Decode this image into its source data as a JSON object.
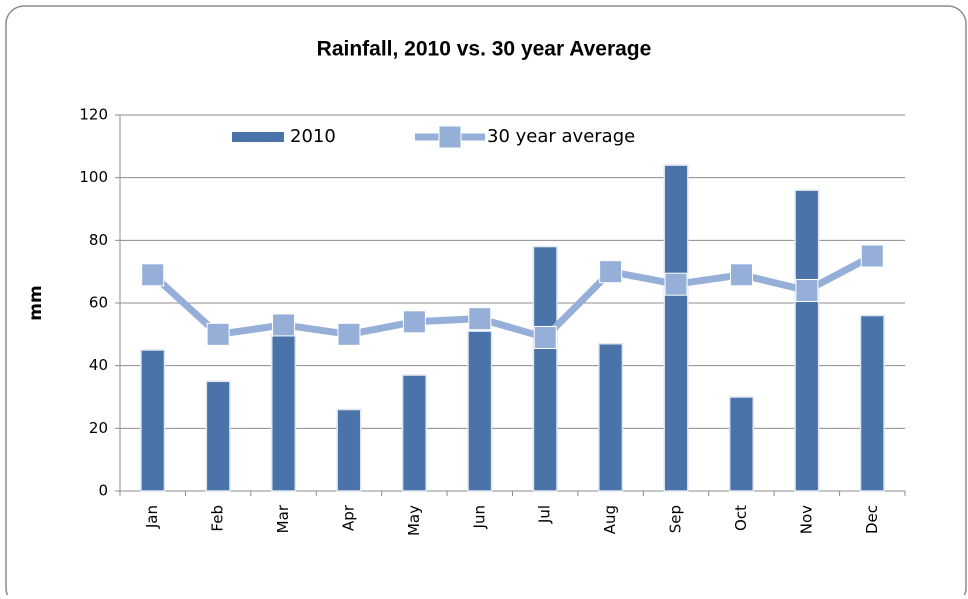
{
  "chart_data": {
    "type": "bar",
    "title": "Rainfall, 2010 vs. 30 year Average",
    "y_label": "mm",
    "categories": [
      "Jan",
      "Feb",
      "Mar",
      "Apr",
      "May",
      "Jun",
      "Jul",
      "Aug",
      "Sep",
      "Oct",
      "Nov",
      "Dec"
    ],
    "series": [
      {
        "name": "2010",
        "type": "bar",
        "color": "#4a74a9",
        "values": [
          45,
          35,
          50,
          26,
          37,
          51,
          78,
          47,
          104,
          30,
          96,
          56
        ]
      },
      {
        "name": "30 year average",
        "type": "line",
        "color": "#95afd8",
        "values": [
          69,
          50,
          53,
          50,
          54,
          55,
          49,
          70,
          66,
          69,
          64,
          75
        ]
      }
    ],
    "ylim": [
      0,
      120
    ],
    "yticks": [
      0,
      20,
      40,
      60,
      80,
      100,
      120
    ],
    "grid": true,
    "legend": "top"
  }
}
